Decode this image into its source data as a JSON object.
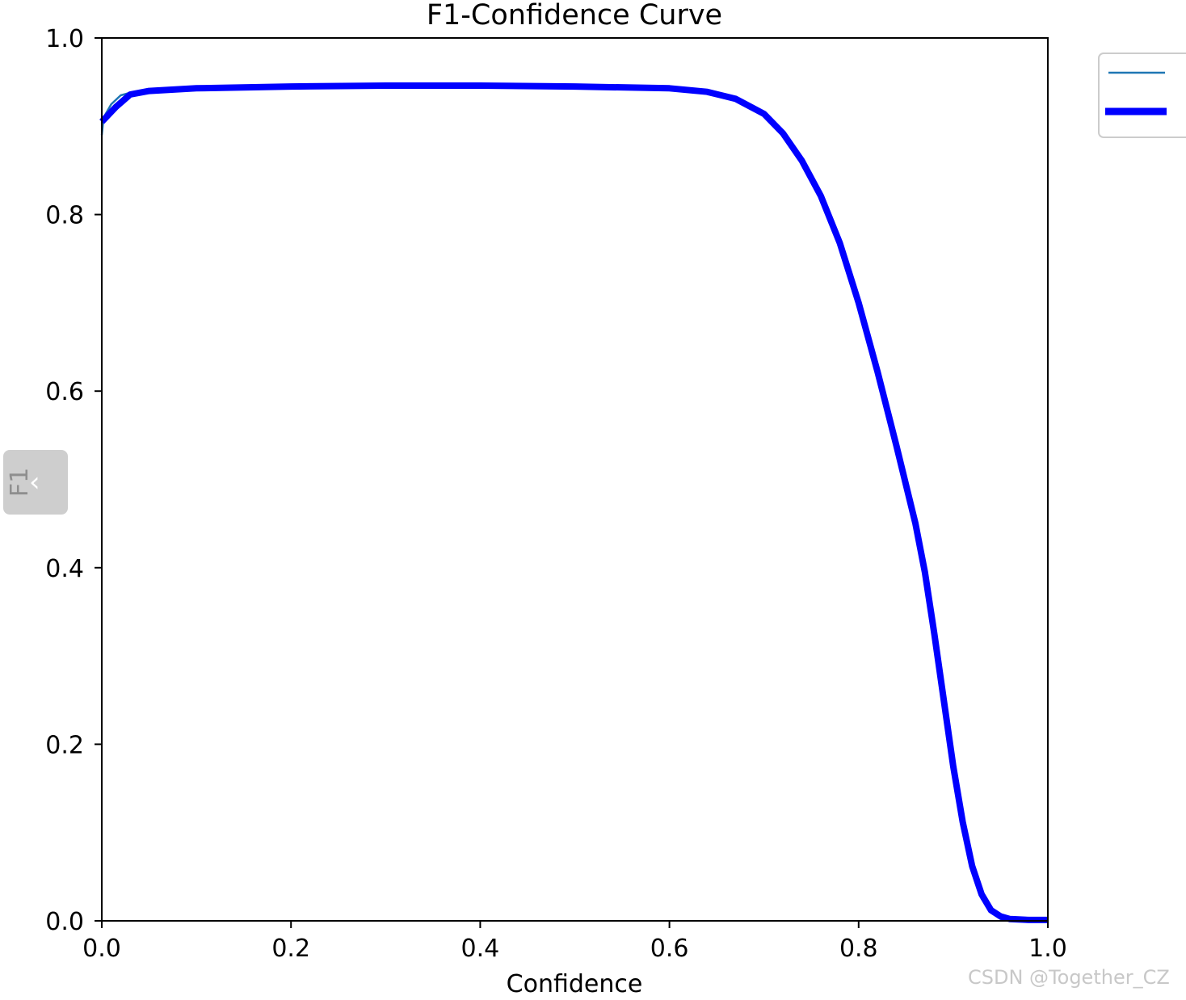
{
  "chart_data": {
    "type": "line",
    "title": "F1-Confidence Curve",
    "xlabel": "Confidence",
    "ylabel": "F1",
    "xlim": [
      0.0,
      1.0
    ],
    "ylim": [
      0.0,
      1.0
    ],
    "xticks": [
      "0.0",
      "0.2",
      "0.4",
      "0.6",
      "0.8",
      "1.0"
    ],
    "yticks": [
      "0.0",
      "0.2",
      "0.4",
      "0.6",
      "0.8",
      "1.0"
    ],
    "grid": false,
    "legend_position": "outside-top-right",
    "series": [
      {
        "color": "#1f77b4",
        "style": "thin",
        "points": [
          [
            0.0,
            0.89
          ],
          [
            0.002,
            0.91
          ],
          [
            0.01,
            0.925
          ],
          [
            0.02,
            0.935
          ],
          [
            0.03,
            0.938
          ],
          [
            0.05,
            0.941
          ],
          [
            0.1,
            0.944
          ],
          [
            0.2,
            0.946
          ],
          [
            0.3,
            0.947
          ],
          [
            0.4,
            0.947
          ],
          [
            0.5,
            0.946
          ],
          [
            0.6,
            0.944
          ],
          [
            0.64,
            0.94
          ],
          [
            0.67,
            0.932
          ],
          [
            0.7,
            0.915
          ],
          [
            0.72,
            0.893
          ],
          [
            0.74,
            0.862
          ],
          [
            0.76,
            0.822
          ],
          [
            0.78,
            0.768
          ],
          [
            0.8,
            0.7
          ],
          [
            0.82,
            0.62
          ],
          [
            0.84,
            0.535
          ],
          [
            0.86,
            0.445
          ],
          [
            0.87,
            0.39
          ],
          [
            0.88,
            0.32
          ],
          [
            0.89,
            0.245
          ],
          [
            0.9,
            0.17
          ],
          [
            0.91,
            0.108
          ],
          [
            0.92,
            0.058
          ],
          [
            0.93,
            0.025
          ],
          [
            0.94,
            0.01
          ],
          [
            0.95,
            0.002
          ],
          [
            0.96,
            0.0
          ],
          [
            1.0,
            0.0
          ]
        ]
      },
      {
        "color": "#0000ff",
        "style": "thick",
        "points": [
          [
            0.0,
            0.905
          ],
          [
            0.015,
            0.922
          ],
          [
            0.03,
            0.936
          ],
          [
            0.05,
            0.94
          ],
          [
            0.1,
            0.943
          ],
          [
            0.2,
            0.945
          ],
          [
            0.3,
            0.946
          ],
          [
            0.4,
            0.946
          ],
          [
            0.5,
            0.945
          ],
          [
            0.6,
            0.943
          ],
          [
            0.64,
            0.939
          ],
          [
            0.67,
            0.931
          ],
          [
            0.7,
            0.914
          ],
          [
            0.72,
            0.892
          ],
          [
            0.74,
            0.861
          ],
          [
            0.76,
            0.821
          ],
          [
            0.78,
            0.768
          ],
          [
            0.8,
            0.7
          ],
          [
            0.82,
            0.622
          ],
          [
            0.84,
            0.538
          ],
          [
            0.86,
            0.45
          ],
          [
            0.87,
            0.395
          ],
          [
            0.88,
            0.325
          ],
          [
            0.89,
            0.25
          ],
          [
            0.9,
            0.175
          ],
          [
            0.91,
            0.112
          ],
          [
            0.92,
            0.062
          ],
          [
            0.93,
            0.03
          ],
          [
            0.94,
            0.012
          ],
          [
            0.95,
            0.005
          ],
          [
            0.96,
            0.002
          ],
          [
            0.98,
            0.001
          ],
          [
            1.0,
            0.001
          ]
        ]
      }
    ]
  },
  "nav": {
    "prev_glyph": "‹"
  },
  "watermark": "CSDN @Together_CZ"
}
